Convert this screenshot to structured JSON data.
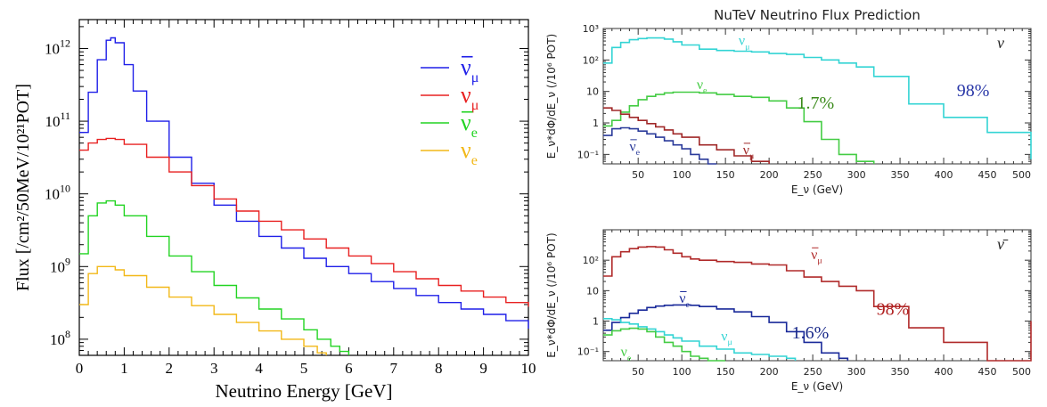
{
  "chart_data": [
    {
      "type": "line",
      "xlabel": "Neutrino Energy [GeV]",
      "ylabel": "Flux [/cm²/50MeV/10²¹POT]",
      "xlim": [
        0,
        10
      ],
      "ylim": [
        60000000,
        2500000000000
      ],
      "yscale": "log",
      "x_ticks": [
        "0",
        "1",
        "2",
        "3",
        "4",
        "5",
        "6",
        "7",
        "8",
        "9",
        "10"
      ],
      "y_ticks": [
        {
          "mantissa": "10",
          "exp": "8",
          "value": 100000000
        },
        {
          "mantissa": "10",
          "exp": "9",
          "value": 1000000000
        },
        {
          "mantissa": "10",
          "exp": "10",
          "value": 10000000000
        },
        {
          "mantissa": "10",
          "exp": "11",
          "value": 100000000000
        },
        {
          "mantissa": "10",
          "exp": "12",
          "value": 1000000000000
        }
      ],
      "grid": false,
      "legend_position": "top-right",
      "series": [
        {
          "name": "ν̄μ",
          "base": "ν",
          "sub": "μ",
          "bar": true,
          "color": "#1f1fe8",
          "x": [
            0.0,
            0.2,
            0.4,
            0.6,
            0.7,
            0.8,
            1.0,
            1.2,
            1.5,
            2.0,
            2.5,
            3.0,
            3.5,
            4.0,
            4.5,
            5.0,
            5.5,
            6.0,
            6.5,
            7.0,
            7.5,
            8.0,
            8.5,
            9.0,
            9.5,
            10.0
          ],
          "y": [
            70000000000.0,
            250000000000.0,
            700000000000.0,
            1300000000000.0,
            1400000000000.0,
            1200000000000.0,
            600000000000.0,
            260000000000.0,
            100000000000.0,
            32000000000.0,
            14000000000.0,
            7000000000.0,
            4200000000.0,
            2600000000.0,
            1800000000.0,
            1300000000.0,
            1000000000.0,
            800000000.0,
            620000000.0,
            500000000.0,
            400000000.0,
            320000000.0,
            260000000.0,
            220000000.0,
            180000000.0,
            140000000.0
          ]
        },
        {
          "name": "νμ",
          "base": "ν",
          "sub": "μ",
          "bar": false,
          "color": "#e82020",
          "x": [
            0.0,
            0.2,
            0.4,
            0.6,
            0.8,
            1.0,
            1.5,
            2.0,
            2.5,
            3.0,
            3.5,
            4.0,
            4.5,
            5.0,
            5.5,
            6.0,
            6.5,
            7.0,
            7.5,
            8.0,
            8.5,
            9.0,
            9.5,
            10.0
          ],
          "y": [
            40000000000.0,
            50000000000.0,
            56000000000.0,
            58000000000.0,
            56000000000.0,
            48000000000.0,
            32000000000.0,
            20000000000.0,
            13000000000.0,
            8500000000.0,
            5800000000.0,
            4200000000.0,
            3200000000.0,
            2400000000.0,
            1800000000.0,
            1400000000.0,
            1100000000.0,
            850000000.0,
            680000000.0,
            550000000.0,
            460000000.0,
            380000000.0,
            320000000.0,
            280000000.0
          ]
        },
        {
          "name": "ν̄e",
          "base": "ν",
          "sub": "e",
          "bar": true,
          "color": "#22d422",
          "x": [
            0.0,
            0.2,
            0.4,
            0.6,
            0.8,
            1.0,
            1.5,
            2.0,
            2.5,
            3.0,
            3.5,
            4.0,
            4.5,
            5.0,
            5.3,
            5.6,
            5.8,
            6.0
          ],
          "y": [
            1500000000.0,
            5000000000.0,
            7500000000.0,
            8000000000.0,
            7000000000.0,
            5000000000.0,
            2600000000.0,
            1400000000.0,
            850000000.0,
            550000000.0,
            370000000.0,
            260000000.0,
            190000000.0,
            135000000.0,
            100000000.0,
            80000000.0,
            68000000.0,
            60000000.0
          ]
        },
        {
          "name": "νe",
          "base": "ν",
          "sub": "e",
          "bar": false,
          "color": "#f2b818",
          "x": [
            0.0,
            0.2,
            0.4,
            0.6,
            0.8,
            1.0,
            1.5,
            2.0,
            2.5,
            3.0,
            3.5,
            4.0,
            4.5,
            5.0,
            5.3,
            5.5
          ],
          "y": [
            300000000.0,
            800000000.0,
            1000000000.0,
            1000000000.0,
            900000000.0,
            750000000.0,
            520000000.0,
            380000000.0,
            290000000.0,
            220000000.0,
            170000000.0,
            130000000.0,
            100000000.0,
            80000000.0,
            65000000.0,
            60000000.0
          ]
        }
      ]
    },
    {
      "type": "line",
      "title": "NuTeV Neutrino Flux Prediction",
      "xlabel": "E_ν (GeV)",
      "ylabel": "E_ν*dΦ/dE_ν (/10⁶ POT)",
      "xlim": [
        10,
        500
      ],
      "ylim": [
        0.05,
        1000
      ],
      "yscale": "log",
      "x_ticks": [
        "50",
        "100",
        "150",
        "200",
        "250",
        "300",
        "350",
        "400",
        "450",
        "500"
      ],
      "y_ticks": [
        {
          "label": "10⁻¹",
          "value": 0.1
        },
        {
          "label": "1",
          "value": 1
        },
        {
          "label": "10",
          "value": 10
        },
        {
          "label": "10²",
          "value": 100
        },
        {
          "label": "10³",
          "value": 1000
        }
      ],
      "mode_label": "ν",
      "annotations": [
        {
          "text": "98%",
          "x": 415,
          "y": 7,
          "color": "#2a38a8",
          "size": 20
        },
        {
          "text": "1.7%",
          "x": 232,
          "y": 2.8,
          "color": "#3a8a1a",
          "size": 20
        }
      ],
      "series": [
        {
          "name": "νμ",
          "base": "ν",
          "sub": "μ",
          "bar": false,
          "color": "#33d4d4",
          "label_x": 165,
          "label_y": 300,
          "x": [
            10,
            20,
            30,
            40,
            50,
            60,
            70,
            80,
            90,
            100,
            120,
            140,
            160,
            180,
            200,
            220,
            240,
            260,
            280,
            300,
            320,
            360,
            400,
            450,
            500
          ],
          "y": [
            80,
            250,
            360,
            440,
            480,
            500,
            500,
            460,
            380,
            300,
            220,
            200,
            190,
            180,
            160,
            150,
            120,
            100,
            80,
            60,
            30,
            4,
            1.5,
            0.5,
            0.07
          ]
        },
        {
          "name": "νe",
          "base": "ν",
          "sub": "e",
          "bar": false,
          "color": "#44cc44",
          "label_x": 117,
          "label_y": 12,
          "x": [
            10,
            20,
            30,
            40,
            50,
            60,
            70,
            80,
            90,
            100,
            120,
            140,
            160,
            180,
            200,
            220,
            240,
            260,
            280,
            300,
            320
          ],
          "y": [
            0.8,
            1.2,
            2.2,
            3.5,
            5.5,
            7,
            8,
            9,
            9.5,
            9.5,
            9,
            8,
            7,
            6.5,
            5,
            3,
            1.1,
            0.3,
            0.1,
            0.06,
            0.05
          ]
        },
        {
          "name": "ν̄e",
          "base": "ν",
          "sub": "e",
          "bar": true,
          "color": "#2a3a9a",
          "label_x": 40,
          "label_y": 0.13,
          "x": [
            10,
            20,
            30,
            40,
            50,
            60,
            70,
            80,
            90,
            100,
            110,
            120,
            130,
            140
          ],
          "y": [
            0.4,
            0.65,
            0.7,
            0.65,
            0.55,
            0.45,
            0.35,
            0.27,
            0.2,
            0.15,
            0.1,
            0.07,
            0.05,
            0.05
          ]
        },
        {
          "name": "ν̄μ",
          "base": "ν",
          "sub": "μ",
          "bar": true,
          "color": "#a02828",
          "label_x": 170,
          "label_y": 0.1,
          "x": [
            10,
            20,
            30,
            40,
            50,
            60,
            70,
            80,
            90,
            100,
            120,
            140,
            160,
            180,
            200
          ],
          "y": [
            3,
            2.5,
            1.9,
            1.5,
            1.2,
            0.95,
            0.75,
            0.6,
            0.45,
            0.35,
            0.2,
            0.14,
            0.09,
            0.06,
            0.05
          ]
        }
      ]
    },
    {
      "type": "line",
      "xlabel": "E_ν (GeV)",
      "ylabel": "E_ν*dΦ/dE_ν (/10⁶ POT)",
      "xlim": [
        10,
        500
      ],
      "ylim": [
        0.05,
        1000
      ],
      "yscale": "log",
      "x_ticks": [
        "50",
        "100",
        "150",
        "200",
        "250",
        "300",
        "350",
        "400",
        "450",
        "500"
      ],
      "y_ticks": [
        {
          "label": "10⁻¹",
          "value": 0.1
        },
        {
          "label": "1",
          "value": 1
        },
        {
          "label": "10",
          "value": 10
        },
        {
          "label": "10²",
          "value": 100
        }
      ],
      "mode_label": "ν̄",
      "annotations": [
        {
          "text": "98%",
          "x": 323,
          "y": 1.6,
          "color": "#b02020",
          "size": 20
        },
        {
          "text": "1.6%",
          "x": 226,
          "y": 0.27,
          "color": "#1a2a8a",
          "size": 20
        }
      ],
      "series": [
        {
          "name": "ν̄μ",
          "base": "ν",
          "sub": "μ",
          "bar": true,
          "color": "#b02a2a",
          "label_x": 248,
          "label_y": 110,
          "x": [
            10,
            20,
            30,
            40,
            50,
            60,
            70,
            80,
            90,
            100,
            110,
            120,
            140,
            160,
            180,
            200,
            220,
            240,
            260,
            280,
            300,
            320,
            360,
            400,
            450,
            500
          ],
          "y": [
            30,
            130,
            190,
            240,
            270,
            280,
            270,
            220,
            170,
            130,
            110,
            100,
            90,
            85,
            75,
            70,
            45,
            28,
            20,
            14,
            10,
            3,
            0.6,
            0.2,
            0.05,
            1
          ]
        },
        {
          "name": "ν̄e",
          "base": "ν",
          "sub": "e",
          "bar": true,
          "color": "#1a2a9a",
          "label_x": 97,
          "label_y": 4,
          "x": [
            10,
            20,
            30,
            40,
            50,
            60,
            70,
            80,
            90,
            100,
            110,
            120,
            140,
            160,
            180,
            200,
            220,
            240,
            260,
            280,
            290
          ],
          "y": [
            0.5,
            0.9,
            1.3,
            1.8,
            2.3,
            2.8,
            3.1,
            3.3,
            3.4,
            3.4,
            3.3,
            3.0,
            2.5,
            2.0,
            1.4,
            0.9,
            0.45,
            0.2,
            0.09,
            0.06,
            0.05
          ]
        },
        {
          "name": "νμ",
          "base": "ν",
          "sub": "μ",
          "bar": false,
          "color": "#33d4d4",
          "label_x": 145,
          "label_y": 0.23,
          "x": [
            10,
            20,
            30,
            40,
            50,
            60,
            70,
            80,
            90,
            100,
            120,
            140,
            160,
            180,
            200,
            220,
            230
          ],
          "y": [
            1.2,
            1.1,
            0.9,
            0.8,
            0.65,
            0.55,
            0.45,
            0.35,
            0.28,
            0.22,
            0.15,
            0.12,
            0.09,
            0.08,
            0.07,
            0.06,
            0.05
          ]
        },
        {
          "name": "νe",
          "base": "ν",
          "sub": "e",
          "bar": false,
          "color": "#44cc44",
          "label_x": 30,
          "label_y": 0.07,
          "x": [
            10,
            20,
            30,
            40,
            50,
            60,
            70,
            80,
            90,
            100,
            110,
            120,
            130,
            140,
            150
          ],
          "y": [
            0.35,
            0.48,
            0.55,
            0.58,
            0.55,
            0.45,
            0.3,
            0.2,
            0.15,
            0.1,
            0.07,
            0.06,
            0.05,
            0.05,
            0.05
          ]
        }
      ]
    }
  ]
}
